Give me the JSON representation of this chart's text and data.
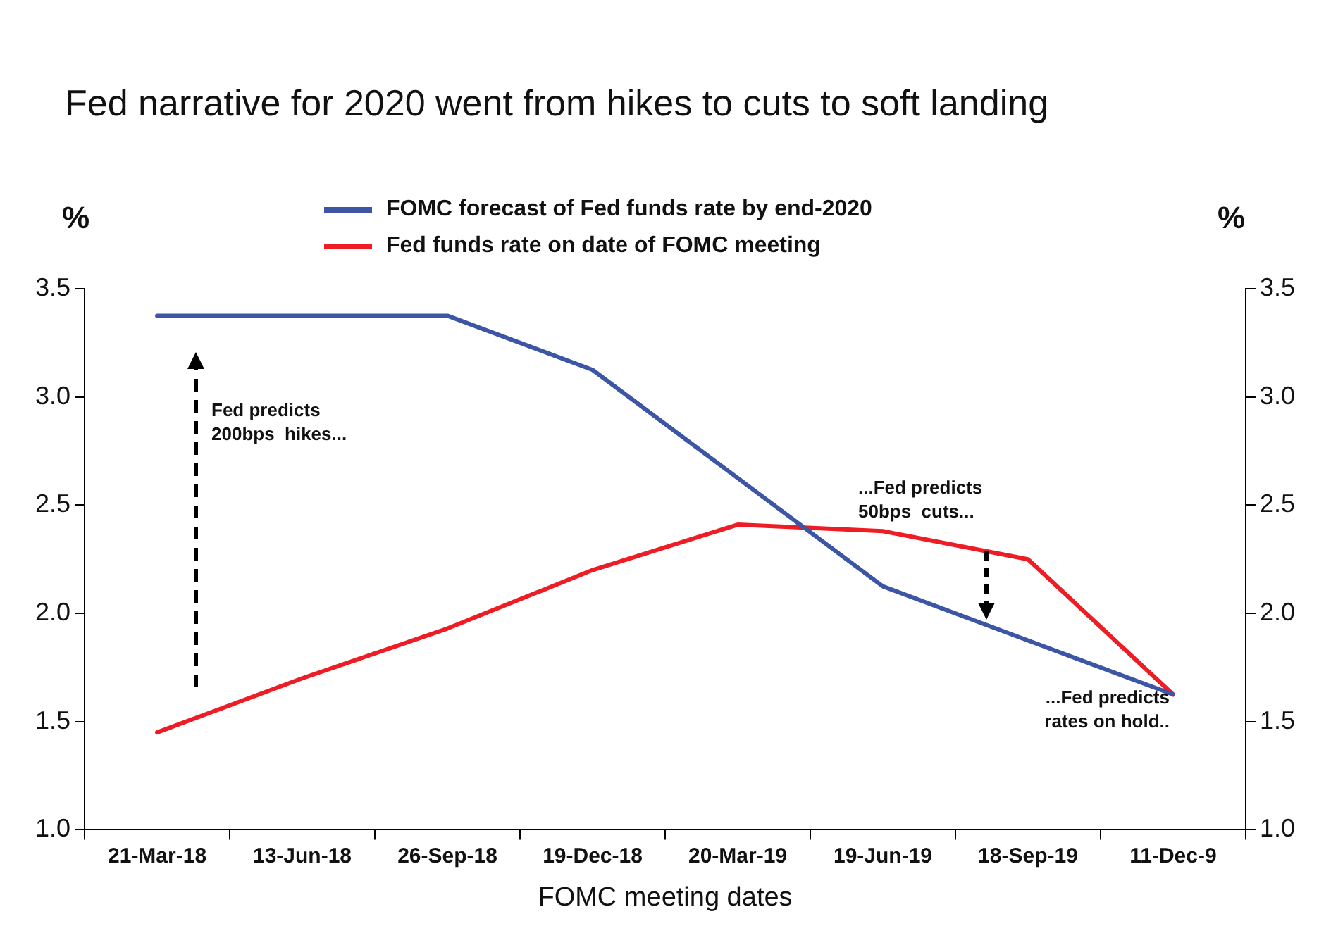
{
  "chart_data": {
    "type": "line",
    "title": "Fed narrative for 2020 went from hikes to cuts to soft landing",
    "xlabel": "FOMC meeting dates",
    "ylabel": "%",
    "y2label": "%",
    "categories": [
      "21-Mar-18",
      "13-Jun-18",
      "26-Sep-18",
      "19-Dec-18",
      "20-Mar-19",
      "19-Jun-19",
      "18-Sep-19",
      "11-Dec-9"
    ],
    "series": [
      {
        "name": "FOMC forecast of Fed funds rate by end-2020",
        "color": "#3d55a5",
        "values": [
          3.375,
          3.375,
          3.375,
          3.125,
          2.625,
          2.125,
          1.875,
          1.625
        ]
      },
      {
        "name": "Fed funds rate on date of FOMC meeting",
        "color": "#ee1c24",
        "values": [
          1.45,
          1.7,
          1.93,
          2.2,
          2.41,
          2.38,
          2.25,
          1.625
        ]
      }
    ],
    "ylim": [
      1.0,
      3.5
    ],
    "yticks": [
      {
        "value": 1.0,
        "label": "1.0"
      },
      {
        "value": 1.5,
        "label": "1.5"
      },
      {
        "value": 2.0,
        "label": "2.0"
      },
      {
        "value": 2.5,
        "label": "2.5"
      },
      {
        "value": 3.0,
        "label": "3.0"
      },
      {
        "value": 3.5,
        "label": "3.5"
      }
    ],
    "y2lim": [
      1.0,
      3.5
    ],
    "y2ticks": [
      {
        "value": 1.0,
        "label": "1.0"
      },
      {
        "value": 1.5,
        "label": "1.5"
      },
      {
        "value": 2.0,
        "label": "2.0"
      },
      {
        "value": 2.5,
        "label": "2.5"
      },
      {
        "value": 3.0,
        "label": "3.0"
      },
      {
        "value": 3.5,
        "label": "3.5"
      }
    ],
    "annotations": [
      "Fed predicts\n200bps  hikes...",
      "...Fed predicts\n50bps  cuts...",
      "...Fed predicts\nrates on hold.."
    ],
    "grid": false,
    "legend": "top",
    "marker": "none",
    "line_style": "solid"
  }
}
